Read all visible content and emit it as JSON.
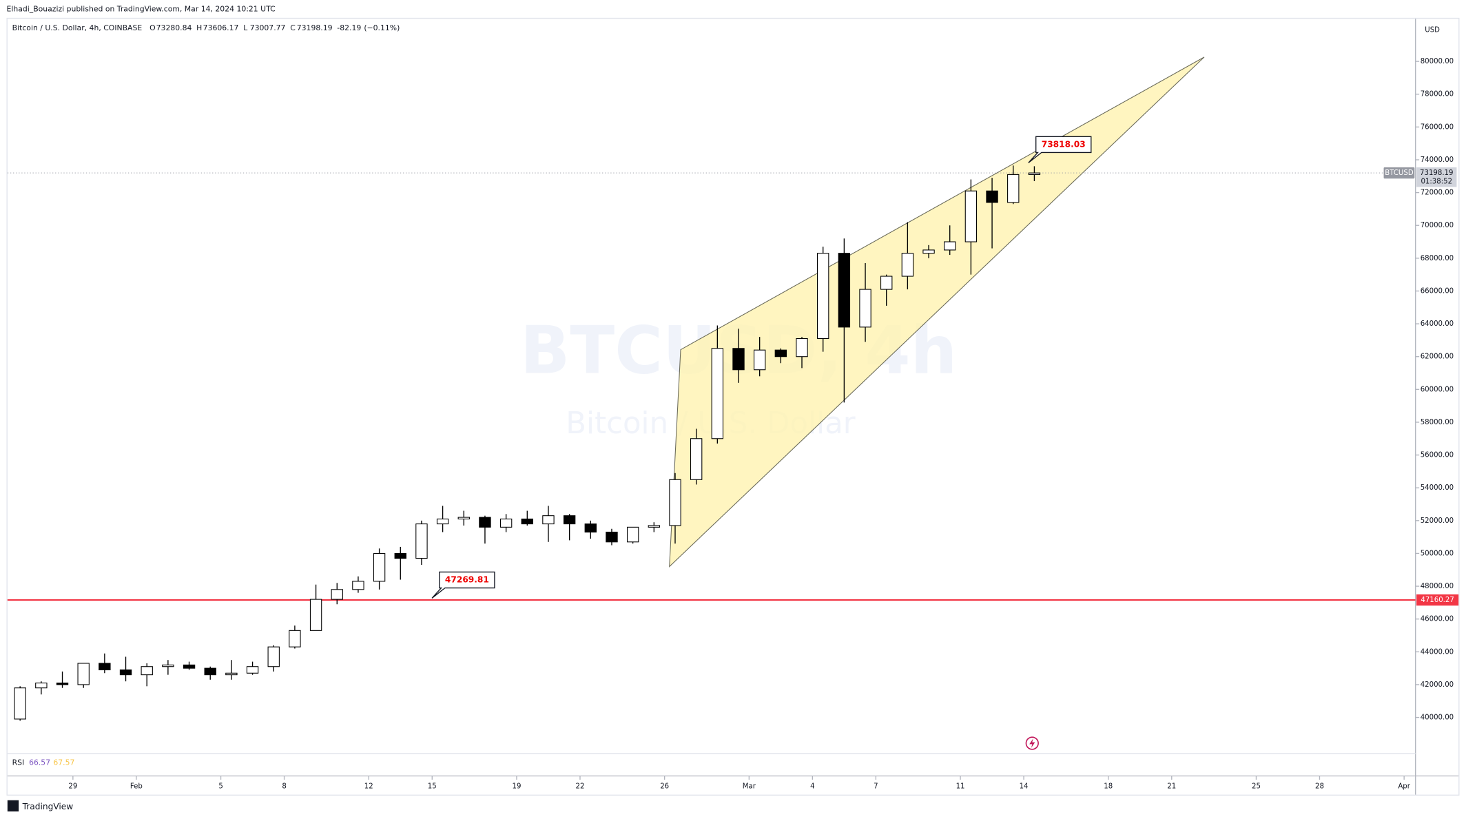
{
  "header": {
    "publisher": "Elhadi_Bouazizi published on TradingView.com, Mar 14, 2024 10:21 UTC",
    "currency": "USD",
    "brand": "TradingView"
  },
  "legend": {
    "symbol": "Bitcoin / U.S. Dollar, 4h, COINBASE",
    "ohlc": [
      {
        "prefix": "O",
        "value": 73280.84
      },
      {
        "prefix": "H",
        "value": 73606.17
      },
      {
        "prefix": "L",
        "value": 73007.77
      },
      {
        "prefix": "C",
        "value": 73198.19
      }
    ],
    "change": -82.19,
    "change_pct": {
      "value": -0.11,
      "label": "(−0.11%)"
    }
  },
  "watermark": {
    "line1": "BTCUSD, 4h",
    "line2": "Bitcoin / U.S. Dollar"
  },
  "rsi": {
    "name": "RSI",
    "value": 66.57,
    "smoothed": 67.57
  },
  "chart_data": {
    "type": "candlestick",
    "up_color": "#ffffff",
    "down_color": "#000000",
    "border_color": "#000000",
    "x": [
      "Jan 26",
      "Jan 27",
      "Jan 28",
      "Jan 29",
      "Jan 30",
      "Jan 31",
      "Feb 1",
      "Feb 2",
      "Feb 3",
      "Feb 4",
      "Feb 5",
      "Feb 6",
      "Feb 7",
      "Feb 8",
      "Feb 9",
      "Feb 10",
      "Feb 11",
      "Feb 12",
      "Feb 13",
      "Feb 14",
      "Feb 15",
      "Feb 16",
      "Feb 17",
      "Feb 18",
      "Feb 19",
      "Feb 20",
      "Feb 21",
      "Feb 22",
      "Feb 23",
      "Feb 24",
      "Feb 25",
      "Feb 26",
      "Feb 27",
      "Feb 28",
      "Feb 29",
      "Mar 1",
      "Mar 2",
      "Mar 3",
      "Mar 4",
      "Mar 5",
      "Mar 6",
      "Mar 7",
      "Mar 8",
      "Mar 9",
      "Mar 10",
      "Mar 11",
      "Mar 12",
      "Mar 13",
      "Mar 14"
    ],
    "open": [
      39900,
      41800,
      42100,
      42000,
      43300,
      42900,
      42600,
      43100,
      43200,
      43000,
      42600,
      42700,
      43100,
      44300,
      45300,
      47200,
      47800,
      48300,
      50000,
      49700,
      51800,
      52100,
      52200,
      51600,
      52100,
      51800,
      52300,
      51800,
      51300,
      50700,
      51600,
      51700,
      54500,
      57000,
      62500,
      61200,
      62400,
      62000,
      63100,
      68300,
      63800,
      66100,
      66900,
      68300,
      68500,
      69000,
      72100,
      71400,
      73100
    ],
    "high": [
      41900,
      42200,
      42800,
      43300,
      43900,
      43700,
      43300,
      43500,
      43400,
      43100,
      43500,
      43400,
      44400,
      45600,
      48100,
      48200,
      48600,
      50300,
      50400,
      52000,
      52900,
      52600,
      52300,
      52400,
      52600,
      52900,
      52400,
      52000,
      51500,
      51500,
      51900,
      54900,
      57600,
      63900,
      63700,
      63200,
      62500,
      63200,
      68700,
      69200,
      67700,
      67000,
      70200,
      68800,
      70000,
      72800,
      72900,
      73650,
      73606
    ],
    "low": [
      39800,
      41400,
      41800,
      41800,
      42700,
      42200,
      41900,
      42600,
      42900,
      42300,
      42300,
      42600,
      42800,
      44200,
      45300,
      46900,
      47600,
      47800,
      48400,
      49300,
      51300,
      51700,
      50600,
      51300,
      51700,
      50700,
      50800,
      50900,
      50500,
      50600,
      51300,
      50600,
      54200,
      56700,
      60400,
      60800,
      61600,
      61300,
      62300,
      59200,
      62900,
      65100,
      66100,
      68000,
      68200,
      67000,
      68600,
      71300,
      72700
    ],
    "close": [
      41800,
      42100,
      42000,
      43300,
      42900,
      42600,
      43100,
      43200,
      43000,
      42600,
      42700,
      43100,
      44300,
      45300,
      47200,
      47800,
      48300,
      50000,
      49700,
      51800,
      52100,
      52200,
      51600,
      52100,
      51800,
      52300,
      51800,
      51300,
      50700,
      51600,
      51700,
      54500,
      57000,
      62500,
      61200,
      62400,
      62000,
      63100,
      68300,
      63800,
      66100,
      66900,
      68300,
      68500,
      69000,
      72100,
      71400,
      73100,
      73198
    ],
    "ylim": [
      37800,
      82600
    ],
    "yticks": [
      {
        "value": 40000,
        "label": "40000.00"
      },
      {
        "value": 42000,
        "label": "42000.00"
      },
      {
        "value": 44000,
        "label": "44000.00"
      },
      {
        "value": 46000,
        "label": "46000.00"
      },
      {
        "value": 48000,
        "label": "48000.00"
      },
      {
        "value": 50000,
        "label": "50000.00"
      },
      {
        "value": 52000,
        "label": "52000.00"
      },
      {
        "value": 54000,
        "label": "54000.00"
      },
      {
        "value": 56000,
        "label": "56000.00"
      },
      {
        "value": 58000,
        "label": "58000.00"
      },
      {
        "value": 60000,
        "label": "60000.00"
      },
      {
        "value": 62000,
        "label": "62000.00"
      },
      {
        "value": 64000,
        "label": "64000.00"
      },
      {
        "value": 66000,
        "label": "66000.00"
      },
      {
        "value": 68000,
        "label": "68000.00"
      },
      {
        "value": 70000,
        "label": "70000.00"
      },
      {
        "value": 72000,
        "label": "72000.00"
      },
      {
        "value": 74000,
        "label": "74000.00"
      },
      {
        "value": 76000,
        "label": "76000.00"
      },
      {
        "value": 78000,
        "label": "78000.00"
      },
      {
        "value": 80000,
        "label": "80000.00"
      }
    ],
    "xticks": [
      {
        "value": "Jan 29",
        "label": "29"
      },
      {
        "value": "Feb 1",
        "label": "Feb"
      },
      {
        "value": "Feb 5",
        "label": "5"
      },
      {
        "value": "Feb 8",
        "label": "8"
      },
      {
        "value": "Feb 12",
        "label": "12"
      },
      {
        "value": "Feb 15",
        "label": "15"
      },
      {
        "value": "Feb 19",
        "label": "19"
      },
      {
        "value": "Feb 22",
        "label": "22"
      },
      {
        "value": "Feb 26",
        "label": "26"
      },
      {
        "value": "Mar 1",
        "label": "Mar"
      },
      {
        "value": "Mar 4",
        "label": "4"
      },
      {
        "value": "Mar 7",
        "label": "7"
      },
      {
        "value": "Mar 11",
        "label": "11"
      },
      {
        "value": "Mar 14",
        "label": "14"
      },
      {
        "value": "Mar 18",
        "label": "18"
      },
      {
        "value": "Mar 21",
        "label": "21"
      },
      {
        "value": "Mar 25",
        "label": "25"
      },
      {
        "value": "Mar 28",
        "label": "28"
      },
      {
        "value": "Apr 1",
        "label": "Apr"
      }
    ],
    "hline": {
      "value": 47160.27,
      "color": "#f23645"
    },
    "last_price": {
      "value": 73198.19,
      "symbol": "BTCUSD",
      "countdown": "01:38:52"
    },
    "annotations": [
      {
        "value": 47269.81
      },
      {
        "value": 73818.03
      }
    ]
  }
}
